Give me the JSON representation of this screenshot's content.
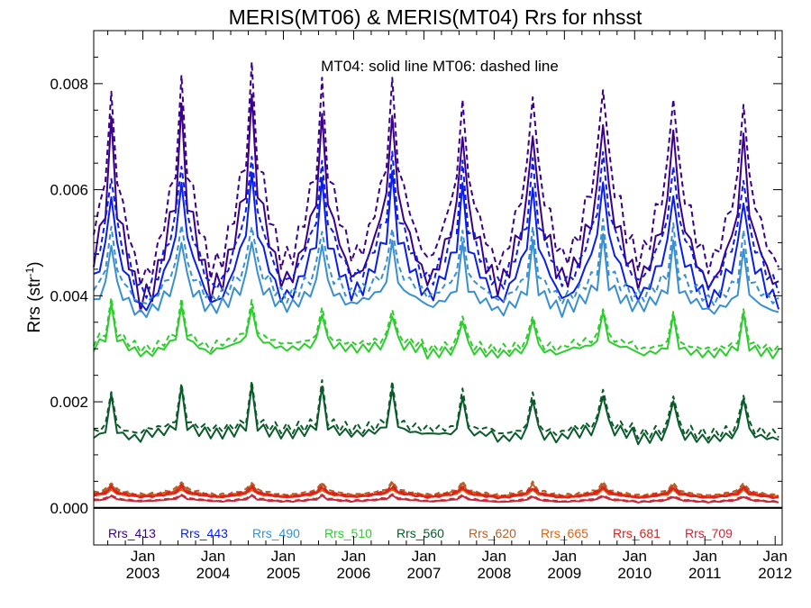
{
  "chart_data": {
    "type": "line",
    "title": "MERIS(MT06) & MERIS(MT04)  Rrs for nhsst",
    "ylabel_main": "Rrs (str",
    "ylabel_sup": "-1",
    "ylabel_close": ")",
    "annotation": "MT04: solid line   MT06: dashed line",
    "ylim": [
      -0.0007,
      0.009
    ],
    "yticks": [
      "0.000",
      "0.002",
      "0.004",
      "0.006",
      "0.008"
    ],
    "ytick_values": [
      0.0,
      0.002,
      0.004,
      0.006,
      0.008
    ],
    "xlim": [
      2002.3,
      2012.1
    ],
    "xticks": [
      {
        "top": "Jan",
        "bottom": "2003",
        "x": 2003.0
      },
      {
        "top": "Jan",
        "bottom": "2004",
        "x": 2004.0
      },
      {
        "top": "Jan",
        "bottom": "2005",
        "x": 2005.0
      },
      {
        "top": "Jan",
        "bottom": "2006",
        "x": 2006.0
      },
      {
        "top": "Jan",
        "bottom": "2007",
        "x": 2007.0
      },
      {
        "top": "Jan",
        "bottom": "2008",
        "x": 2008.0
      },
      {
        "top": "Jan",
        "bottom": "2009",
        "x": 2009.0
      },
      {
        "top": "Jan",
        "bottom": "2010",
        "x": 2010.0
      },
      {
        "top": "Jan",
        "bottom": "2011",
        "x": 2011.0
      },
      {
        "top": "Jan",
        "bottom": "2012",
        "x": 2012.0
      }
    ],
    "legend_placement": "bottom",
    "series": [
      {
        "name": "Rrs_413",
        "color": "#3a0088",
        "amp": 0.0029,
        "mt04": [
          0.0058,
          0.006,
          0.0062,
          0.0059,
          0.006,
          0.0057,
          0.0058,
          0.006,
          0.0058,
          0.0056
        ],
        "mt06": [
          0.0064,
          0.0066,
          0.0068,
          0.0065,
          0.0066,
          0.0063,
          0.0065,
          0.0067,
          0.0065,
          0.0063
        ],
        "mt04_min": [
          0.0038,
          0.004,
          0.0042,
          0.0043,
          0.0044,
          0.0043,
          0.0042,
          0.0044,
          0.0043,
          0.0042
        ],
        "mt06_min": [
          0.0042,
          0.0044,
          0.0046,
          0.0047,
          0.0048,
          0.0047,
          0.0046,
          0.0048,
          0.0047,
          0.0046
        ]
      },
      {
        "name": "Rrs_443",
        "color": "#0a1ee6",
        "amp": 0.002,
        "mt04": [
          0.005,
          0.0052,
          0.0053,
          0.0051,
          0.0052,
          0.005,
          0.005,
          0.0052,
          0.005,
          0.0049
        ],
        "mt06": [
          0.0054,
          0.0056,
          0.0057,
          0.0055,
          0.0056,
          0.0054,
          0.0055,
          0.0057,
          0.0055,
          0.0053
        ],
        "mt04_min": [
          0.0037,
          0.0038,
          0.0039,
          0.004,
          0.0041,
          0.004,
          0.0039,
          0.004,
          0.004,
          0.0039
        ],
        "mt06_min": [
          0.004,
          0.0041,
          0.0042,
          0.0043,
          0.0044,
          0.0043,
          0.0042,
          0.0043,
          0.0043,
          0.0042
        ]
      },
      {
        "name": "Rrs_490",
        "color": "#3a8fd0",
        "amp": 0.0016,
        "mt04": [
          0.0042,
          0.0043,
          0.0043,
          0.0042,
          0.0042,
          0.0041,
          0.0041,
          0.0042,
          0.0041,
          0.004
        ],
        "mt06": [
          0.0045,
          0.0046,
          0.0046,
          0.0045,
          0.0045,
          0.0044,
          0.0044,
          0.0045,
          0.0044,
          0.0043
        ],
        "mt04_min": [
          0.0036,
          0.0037,
          0.0038,
          0.0038,
          0.0039,
          0.0038,
          0.0037,
          0.0038,
          0.0038,
          0.0037
        ],
        "mt06_min": [
          0.0038,
          0.0039,
          0.004,
          0.004,
          0.0041,
          0.004,
          0.0039,
          0.004,
          0.004,
          0.0039
        ]
      },
      {
        "name": "Rrs_510",
        "color": "#2ecc2e",
        "amp": 0.0011,
        "mt04": [
          0.0032,
          0.0032,
          0.0032,
          0.0031,
          0.0031,
          0.003,
          0.003,
          0.0031,
          0.003,
          0.003
        ],
        "mt06": [
          0.0033,
          0.0033,
          0.0033,
          0.0032,
          0.0032,
          0.0031,
          0.0031,
          0.0032,
          0.0031,
          0.0031
        ],
        "mt04_min": [
          0.0029,
          0.0029,
          0.003,
          0.003,
          0.003,
          0.0029,
          0.0029,
          0.003,
          0.0029,
          0.0029
        ],
        "mt06_min": [
          0.003,
          0.003,
          0.0031,
          0.0031,
          0.0031,
          0.003,
          0.003,
          0.0031,
          0.003,
          0.003
        ]
      },
      {
        "name": "Rrs_560",
        "color": "#0a5a2a",
        "amp": 0.0013,
        "mt04": [
          0.0014,
          0.0015,
          0.0015,
          0.0015,
          0.0015,
          0.0014,
          0.0014,
          0.0015,
          0.0014,
          0.0014
        ],
        "mt06": [
          0.0015,
          0.0016,
          0.0016,
          0.0016,
          0.0016,
          0.0015,
          0.0015,
          0.0016,
          0.0015,
          0.0015
        ],
        "mt04_min": [
          0.0013,
          0.0014,
          0.0014,
          0.0014,
          0.0014,
          0.0014,
          0.0013,
          0.0014,
          0.0013,
          0.0013
        ],
        "mt06_min": [
          0.0014,
          0.0015,
          0.0015,
          0.0015,
          0.0015,
          0.0015,
          0.0014,
          0.0015,
          0.0014,
          0.0014
        ]
      },
      {
        "name": "Rrs_620",
        "color": "#b5602a",
        "amp": 0.00028,
        "mt04": [
          0.0003,
          0.00032,
          0.0003,
          0.0003,
          0.00031,
          0.0003,
          0.00029,
          0.0003,
          0.00029,
          0.00029
        ],
        "mt06": [
          0.00034,
          0.00036,
          0.00034,
          0.00034,
          0.00035,
          0.00034,
          0.00033,
          0.00034,
          0.00033,
          0.00033
        ],
        "mt04_min": [
          0.00022,
          0.00023,
          0.00022,
          0.00022,
          0.00023,
          0.00022,
          0.00021,
          0.00022,
          0.00021,
          0.00021
        ],
        "mt06_min": [
          0.00025,
          0.00026,
          0.00025,
          0.00025,
          0.00026,
          0.00025,
          0.00024,
          0.00025,
          0.00024,
          0.00024
        ]
      },
      {
        "name": "Rrs_665",
        "color": "#e06010",
        "amp": 0.00016,
        "mt04": [
          0.00026,
          0.00027,
          0.00026,
          0.00026,
          0.00027,
          0.00026,
          0.00025,
          0.00026,
          0.00025,
          0.00025
        ],
        "mt06": [
          0.00029,
          0.0003,
          0.00029,
          0.00029,
          0.0003,
          0.00029,
          0.00028,
          0.00029,
          0.00028,
          0.00028
        ],
        "mt04_min": [
          0.00021,
          0.00022,
          0.00021,
          0.00021,
          0.00022,
          0.00021,
          0.0002,
          0.00021,
          0.0002,
          0.0002
        ],
        "mt06_min": [
          0.00023,
          0.00024,
          0.00023,
          0.00023,
          0.00024,
          0.00023,
          0.00022,
          0.00023,
          0.00022,
          0.00022
        ]
      },
      {
        "name": "Rrs_681",
        "color": "#dd2020",
        "amp": 0.0002,
        "mt04": [
          0.00028,
          0.00029,
          0.00028,
          0.00028,
          0.00029,
          0.00028,
          0.00027,
          0.00028,
          0.00027,
          0.00027
        ],
        "mt06": [
          0.00031,
          0.00032,
          0.00031,
          0.00031,
          0.00032,
          0.00031,
          0.0003,
          0.00031,
          0.0003,
          0.0003
        ],
        "mt04_min": [
          0.0002,
          0.00021,
          0.0002,
          0.0002,
          0.00021,
          0.0002,
          0.00019,
          0.0002,
          0.00019,
          0.00019
        ],
        "mt06_min": [
          0.00022,
          0.00023,
          0.00022,
          0.00022,
          0.00023,
          0.00022,
          0.00021,
          0.00022,
          0.00021,
          0.00021
        ]
      },
      {
        "name": "Rrs_709",
        "color": "#c8283a",
        "amp": 0.00012,
        "mt04": [
          0.00016,
          0.00017,
          0.00016,
          0.00016,
          0.00017,
          0.00016,
          0.00015,
          0.00016,
          0.00015,
          0.00015
        ],
        "mt06": [
          0.00018,
          0.00019,
          0.00018,
          0.00018,
          0.00019,
          0.00018,
          0.00017,
          0.00018,
          0.00017,
          0.00017
        ],
        "mt04_min": [
          0.00012,
          0.00013,
          0.00012,
          0.00012,
          0.00013,
          0.00012,
          0.00011,
          0.00012,
          0.00011,
          0.00011
        ],
        "mt06_min": [
          0.00013,
          0.00014,
          0.00013,
          0.00013,
          0.00014,
          0.00013,
          0.00012,
          0.00013,
          0.00012,
          0.00012
        ]
      }
    ]
  }
}
